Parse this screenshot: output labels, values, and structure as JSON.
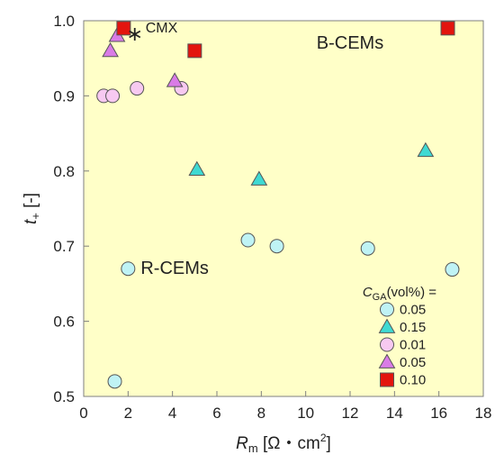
{
  "colors": {
    "plot_background": "#FFFFC8",
    "frame": "#7F7F7F",
    "text": "#222222",
    "cyan": "#BFF3F5",
    "teal": "#3FD9D2",
    "pink": "#F7C9F1",
    "purple": "#D97BE6",
    "red": "#E3140E",
    "marker_edge": "#555555"
  },
  "chart_data": {
    "type": "scatter",
    "xlabel": "R",
    "xlabel_sub": "m",
    "xlabel_unit": " [Ω・cm",
    "xlabel_sup": "2",
    "xlabel_end": "]",
    "ylabel": "t",
    "ylabel_sub": "+",
    "ylabel_unit": " [-]",
    "xlim": [
      0,
      18
    ],
    "ylim": [
      0.5,
      1.0
    ],
    "xticks": [
      0,
      2,
      4,
      6,
      8,
      10,
      12,
      14,
      16,
      18
    ],
    "yticks": [
      0.5,
      0.6,
      0.7,
      0.8,
      0.9,
      1.0
    ],
    "xtick_labels": [
      "0",
      "2",
      "4",
      "6",
      "8",
      "10",
      "12",
      "14",
      "16",
      "18"
    ],
    "ytick_labels": [
      "0.5",
      "0.6",
      "0.7",
      "0.8",
      "0.9",
      "1.0"
    ],
    "grid": false,
    "legend_title": "C",
    "legend_title_sub": "GA",
    "legend_title_end": "(vol%) =",
    "legend_position": "bottom-right",
    "annotations": [
      {
        "text": "B-CEMs",
        "x": 12.0,
        "y": 0.963
      },
      {
        "text": "R-CEMs",
        "x": 4.1,
        "y": 0.663
      }
    ],
    "series": [
      {
        "name": "0.05",
        "marker": "circle",
        "color": "#BFF3F5",
        "points": [
          [
            1.4,
            0.52
          ],
          [
            2.0,
            0.67
          ],
          [
            7.4,
            0.708
          ],
          [
            8.7,
            0.7
          ],
          [
            12.8,
            0.697
          ],
          [
            16.6,
            0.669
          ]
        ]
      },
      {
        "name": "0.15",
        "marker": "triangle",
        "color": "#3FD9D2",
        "points": [
          [
            5.1,
            0.802
          ],
          [
            7.9,
            0.789
          ],
          [
            15.4,
            0.827
          ]
        ]
      },
      {
        "name": "0.01",
        "marker": "circle",
        "color": "#F7C9F1",
        "points": [
          [
            0.9,
            0.9
          ],
          [
            1.3,
            0.9
          ],
          [
            2.4,
            0.91
          ],
          [
            4.4,
            0.91
          ]
        ]
      },
      {
        "name": "0.05",
        "marker": "triangle",
        "color": "#D97BE6",
        "points": [
          [
            1.2,
            0.96
          ],
          [
            1.5,
            0.98
          ],
          [
            4.1,
            0.92
          ]
        ]
      },
      {
        "name": "0.10",
        "marker": "square",
        "color": "#E3140E",
        "points": [
          [
            1.8,
            0.99
          ],
          [
            5.0,
            0.96
          ],
          [
            16.4,
            0.99
          ]
        ]
      },
      {
        "name": "CMX",
        "marker": "asterisk",
        "color": "#222222",
        "in_legend": false,
        "points": [
          [
            2.3,
            0.982
          ]
        ]
      }
    ]
  }
}
